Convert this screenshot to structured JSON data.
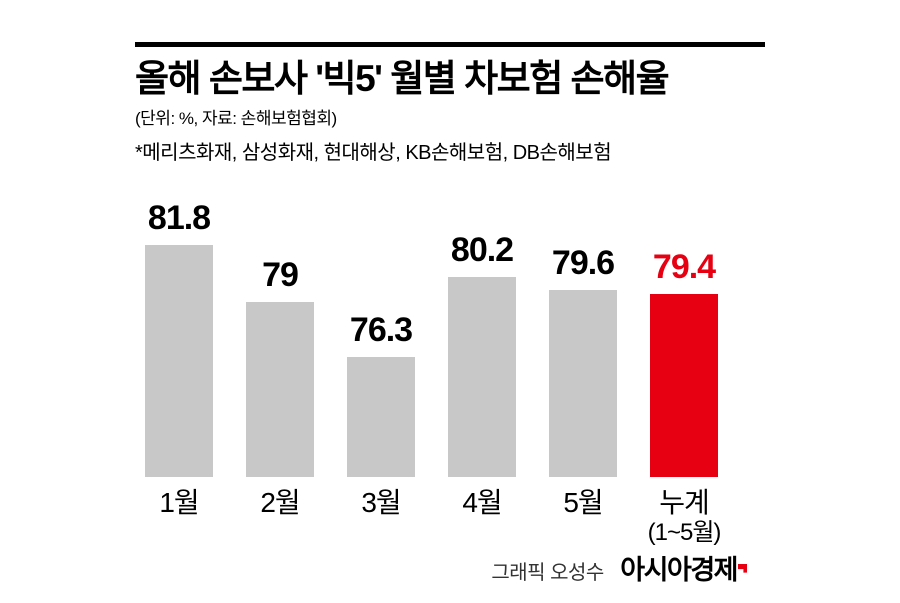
{
  "header": {
    "title": "올해 손보사 '빅5' 월별 차보험 손해율",
    "subtitle": "(단위: %, 자료: 손해보험협회)",
    "note": "*메리츠화재, 삼성화재, 현대해상, KB손해보험, DB손해보험"
  },
  "chart_data": {
    "type": "bar",
    "title": "올해 손보사 '빅5' 월별 차보험 손해율",
    "unit": "%",
    "source": "손해보험협회",
    "categories": [
      "1월",
      "2월",
      "3월",
      "4월",
      "5월",
      "누계"
    ],
    "category_sub": [
      "",
      "",
      "",
      "",
      "",
      "(1~5월)"
    ],
    "values": [
      81.8,
      79,
      76.3,
      80.2,
      79.6,
      79.4
    ],
    "value_labels": [
      "81.8",
      "79",
      "76.3",
      "80.2",
      "79.6",
      "79.4"
    ],
    "highlight_index": 5,
    "bar_colors": [
      "#c8c8c8",
      "#c8c8c8",
      "#c8c8c8",
      "#c8c8c8",
      "#c8c8c8",
      "#e60012"
    ],
    "legend": "none",
    "grid": false
  },
  "footer": {
    "credit": "그래픽 오성수",
    "brand": "아시아경제"
  },
  "colors": {
    "bar_gray": "#c8c8c8",
    "accent_red": "#e60012",
    "text_black": "#000000"
  }
}
